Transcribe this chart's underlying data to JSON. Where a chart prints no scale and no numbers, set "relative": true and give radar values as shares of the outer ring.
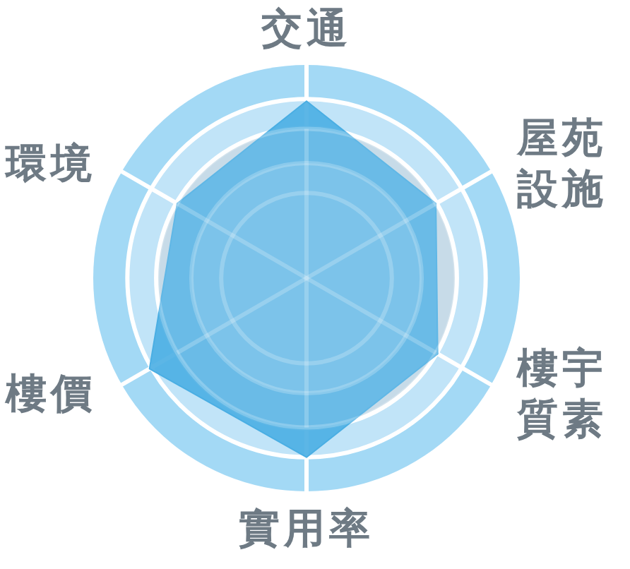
{
  "chart_data": {
    "type": "radar",
    "relative": true,
    "grid": true,
    "categories": [
      "交通",
      "屋苑設施",
      "樓宇質素",
      "實用率",
      "樓價",
      "環境"
    ],
    "series": [
      {
        "color": "#4aaee3",
        "values": [
          0.83,
          0.7,
          0.71,
          0.84,
          0.85,
          0.7
        ]
      }
    ]
  }
}
